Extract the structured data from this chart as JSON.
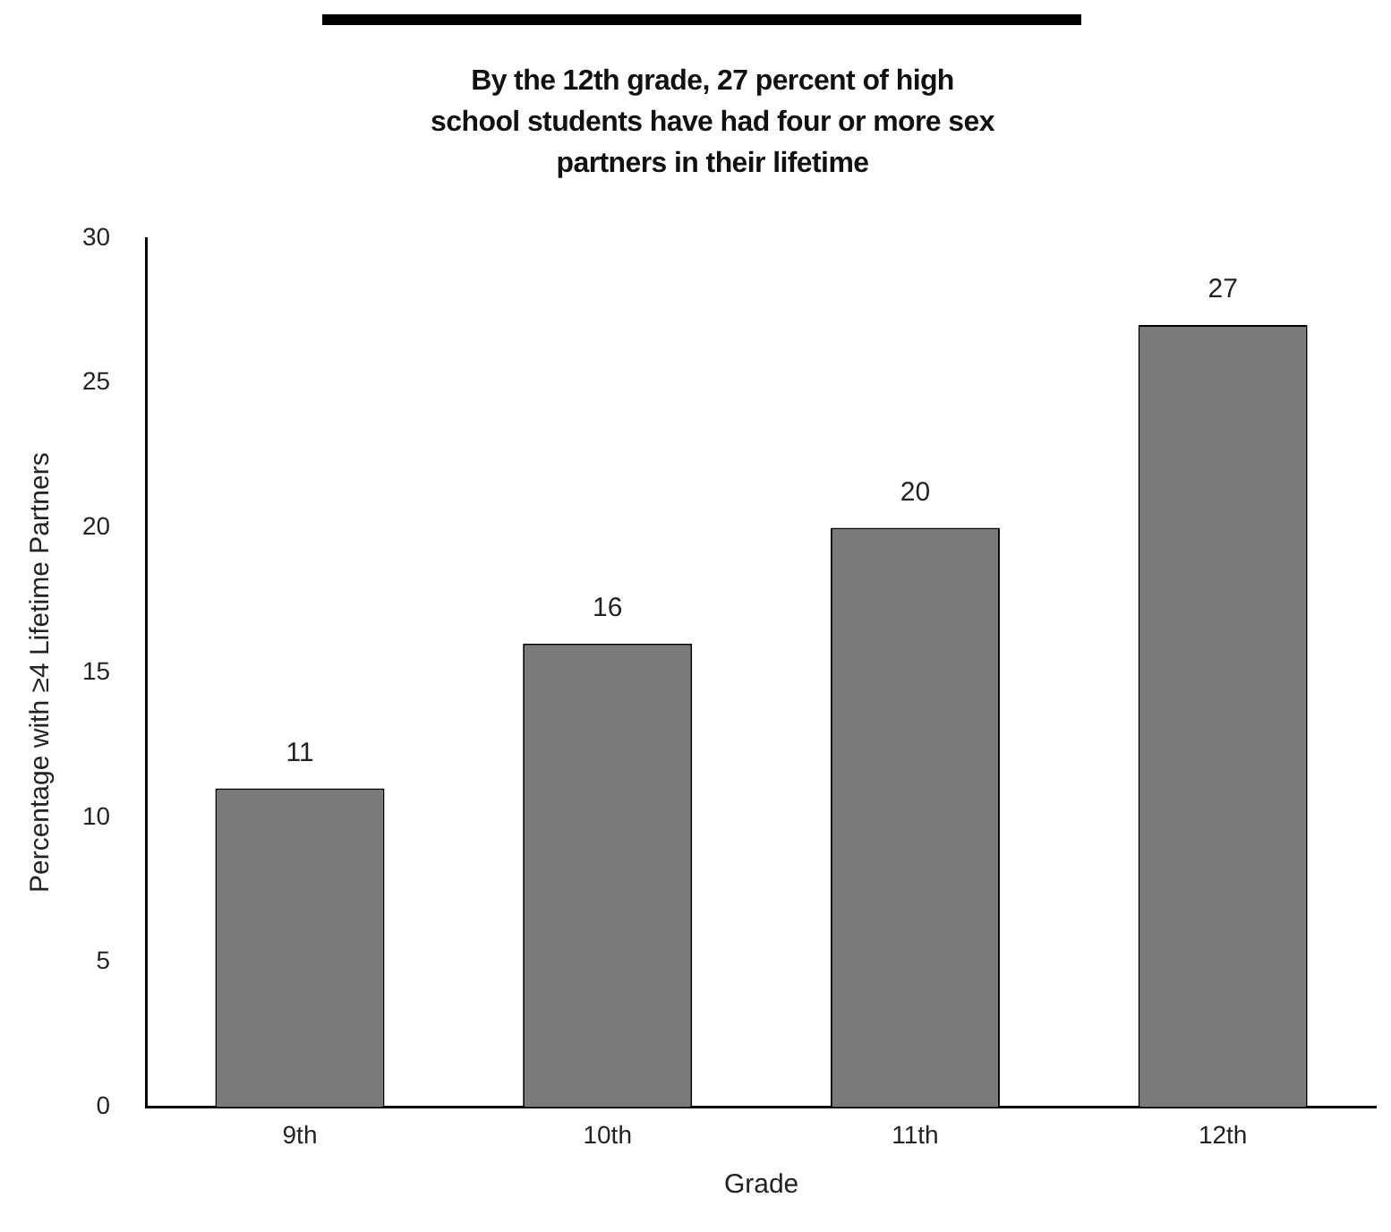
{
  "chart_data": {
    "type": "bar",
    "title": "By the 12th grade, 27 percent of high school students have had four or more sex partners in their lifetime",
    "xlabel": "Grade",
    "ylabel": "Percentage with ≥4 Lifetime Partners",
    "categories": [
      "9th",
      "10th",
      "11th",
      "12th"
    ],
    "series": [
      {
        "color": "#7a7a7a",
        "values": [
          11,
          16,
          20,
          27
        ]
      }
    ],
    "ylim": [
      0,
      30
    ],
    "yticks": [
      0,
      5,
      10,
      15,
      20,
      25,
      30
    ],
    "grid": false,
    "legend": false,
    "data_labels": true
  }
}
